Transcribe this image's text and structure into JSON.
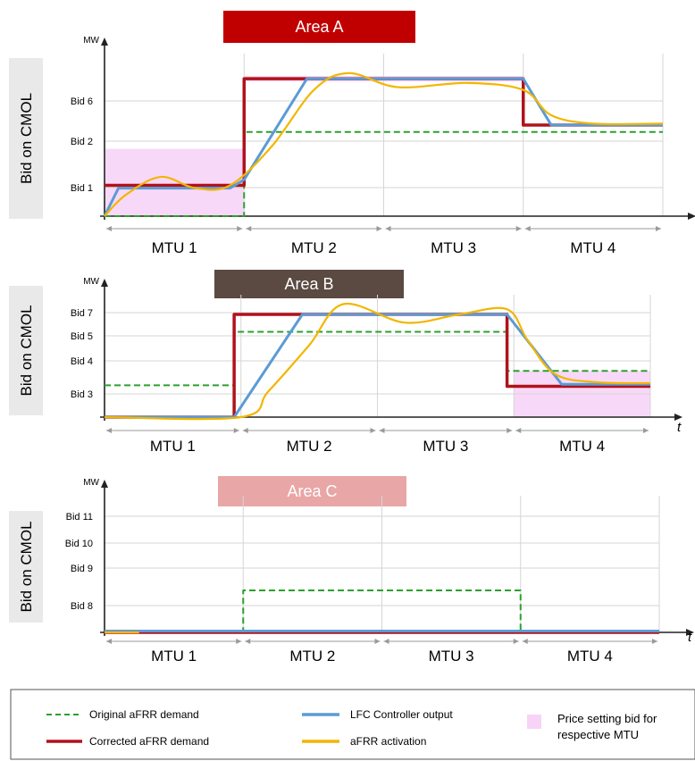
{
  "chart_data": [
    {
      "type": "line",
      "title": "Area A",
      "title_color": "#c00000",
      "ylabel": "Bid on CMOL",
      "yunit": "MW",
      "xunit": "",
      "y_ticks": [
        "Bid 1",
        "Bid 2",
        "Bid 6"
      ],
      "mtu_labels": [
        "MTU 1",
        "MTU 2",
        "MTU 3",
        "MTU 4"
      ],
      "price_setting_bands": [
        {
          "mtu": 1,
          "from": 0.0,
          "to": 0.48
        },
        {
          "mtu": 2,
          "from": 0.96,
          "to": 1.0
        },
        {
          "mtu": 3,
          "from": 0.96,
          "to": 1.0
        }
      ],
      "series": {
        "original_demand": [
          [
            0,
            0
          ],
          [
            1,
            0
          ],
          [
            1,
            0.6
          ],
          [
            4,
            0.6
          ]
        ],
        "corrected_demand": [
          [
            0,
            0.22
          ],
          [
            1,
            0.22
          ],
          [
            1,
            0.98
          ],
          [
            3,
            0.98
          ],
          [
            3,
            0.65
          ],
          [
            4,
            0.65
          ]
        ],
        "lfc_output": [
          [
            0,
            0
          ],
          [
            0.1,
            0.2
          ],
          [
            0.9,
            0.2
          ],
          [
            1,
            0.26
          ],
          [
            1.45,
            0.98
          ],
          [
            3,
            0.98
          ],
          [
            3.2,
            0.65
          ],
          [
            4,
            0.65
          ]
        ],
        "afrr_activation": [
          [
            0,
            0
          ],
          [
            0.15,
            0.15
          ],
          [
            0.4,
            0.28
          ],
          [
            0.65,
            0.2
          ],
          [
            0.9,
            0.22
          ],
          [
            1.2,
            0.5
          ],
          [
            1.5,
            0.9
          ],
          [
            1.75,
            1.02
          ],
          [
            2.1,
            0.92
          ],
          [
            2.6,
            0.95
          ],
          [
            3,
            0.9
          ],
          [
            3.2,
            0.72
          ],
          [
            3.5,
            0.66
          ],
          [
            4,
            0.66
          ]
        ]
      }
    },
    {
      "type": "line",
      "title": "Area B",
      "title_color": "#5a4a42",
      "ylabel": "Bid on CMOL",
      "yunit": "MW",
      "xunit": "t",
      "y_ticks": [
        "Bid 3",
        "Bid 4",
        "Bid 5",
        "Bid 7"
      ],
      "mtu_labels": [
        "MTU 1",
        "MTU 2",
        "MTU 3",
        "MTU 4"
      ],
      "price_setting_bands": [
        {
          "mtu": 4,
          "from": 0.0,
          "to": 0.45
        }
      ],
      "series": {
        "original_demand": [
          [
            0,
            0.31
          ],
          [
            0.95,
            0.31
          ],
          [
            0.95,
            0.83
          ],
          [
            2.95,
            0.83
          ],
          [
            2.95,
            0.45
          ],
          [
            4,
            0.45
          ]
        ],
        "corrected_demand": [
          [
            0,
            0.0
          ],
          [
            0.95,
            0.0
          ],
          [
            0.95,
            1.0
          ],
          [
            2.95,
            1.0
          ],
          [
            2.95,
            0.3
          ],
          [
            4,
            0.3
          ]
        ],
        "lfc_output": [
          [
            0,
            0
          ],
          [
            0.95,
            0
          ],
          [
            1.45,
            1.0
          ],
          [
            2.95,
            1.0
          ],
          [
            3.35,
            0.32
          ],
          [
            4,
            0.32
          ]
        ],
        "afrr_activation": [
          [
            0,
            0
          ],
          [
            1.0,
            0
          ],
          [
            1.2,
            0.25
          ],
          [
            1.5,
            0.7
          ],
          [
            1.75,
            1.1
          ],
          [
            2.2,
            0.92
          ],
          [
            2.6,
            1.0
          ],
          [
            2.95,
            1.05
          ],
          [
            3.1,
            0.75
          ],
          [
            3.3,
            0.42
          ],
          [
            3.6,
            0.34
          ],
          [
            4,
            0.33
          ]
        ]
      }
    },
    {
      "type": "line",
      "title": "Area C",
      "title_color": "#e9a6a6",
      "ylabel": "Bid on CMOL",
      "yunit": "MW",
      "xunit": "t",
      "y_ticks": [
        "Bid 8",
        "Bid 9",
        "Bid 10",
        "Bid 11"
      ],
      "mtu_labels": [
        "MTU 1",
        "MTU 2",
        "MTU 3",
        "MTU 4"
      ],
      "price_setting_bands": [],
      "series": {
        "original_demand": [
          [
            0,
            0
          ],
          [
            1,
            0
          ],
          [
            1,
            0.61
          ],
          [
            3,
            0.61
          ],
          [
            3,
            0
          ],
          [
            4,
            0
          ]
        ],
        "corrected_demand": [
          [
            0,
            0
          ],
          [
            4,
            0
          ]
        ],
        "lfc_output": [
          [
            0,
            0.02
          ],
          [
            4,
            0.02
          ]
        ],
        "afrr_activation": [
          [
            0,
            0
          ],
          [
            0.25,
            0
          ]
        ]
      }
    }
  ],
  "legend": {
    "items": [
      {
        "key": "original_demand",
        "label": "Original aFRR demand",
        "color": "#2ca02c",
        "style": "dashed"
      },
      {
        "key": "corrected_demand",
        "label": "Corrected aFRR demand",
        "color": "#b0121b",
        "style": "solid"
      },
      {
        "key": "lfc_output",
        "label": "LFC Controller output",
        "color": "#5b9bd5",
        "style": "solid"
      },
      {
        "key": "afrr_activation",
        "label": "aFRR activation",
        "color": "#f2b600",
        "style": "solid"
      }
    ],
    "price_setting_label_1": "Price setting bid for",
    "price_setting_label_2": "respective MTU",
    "price_setting_color": "#f7d4f7"
  }
}
